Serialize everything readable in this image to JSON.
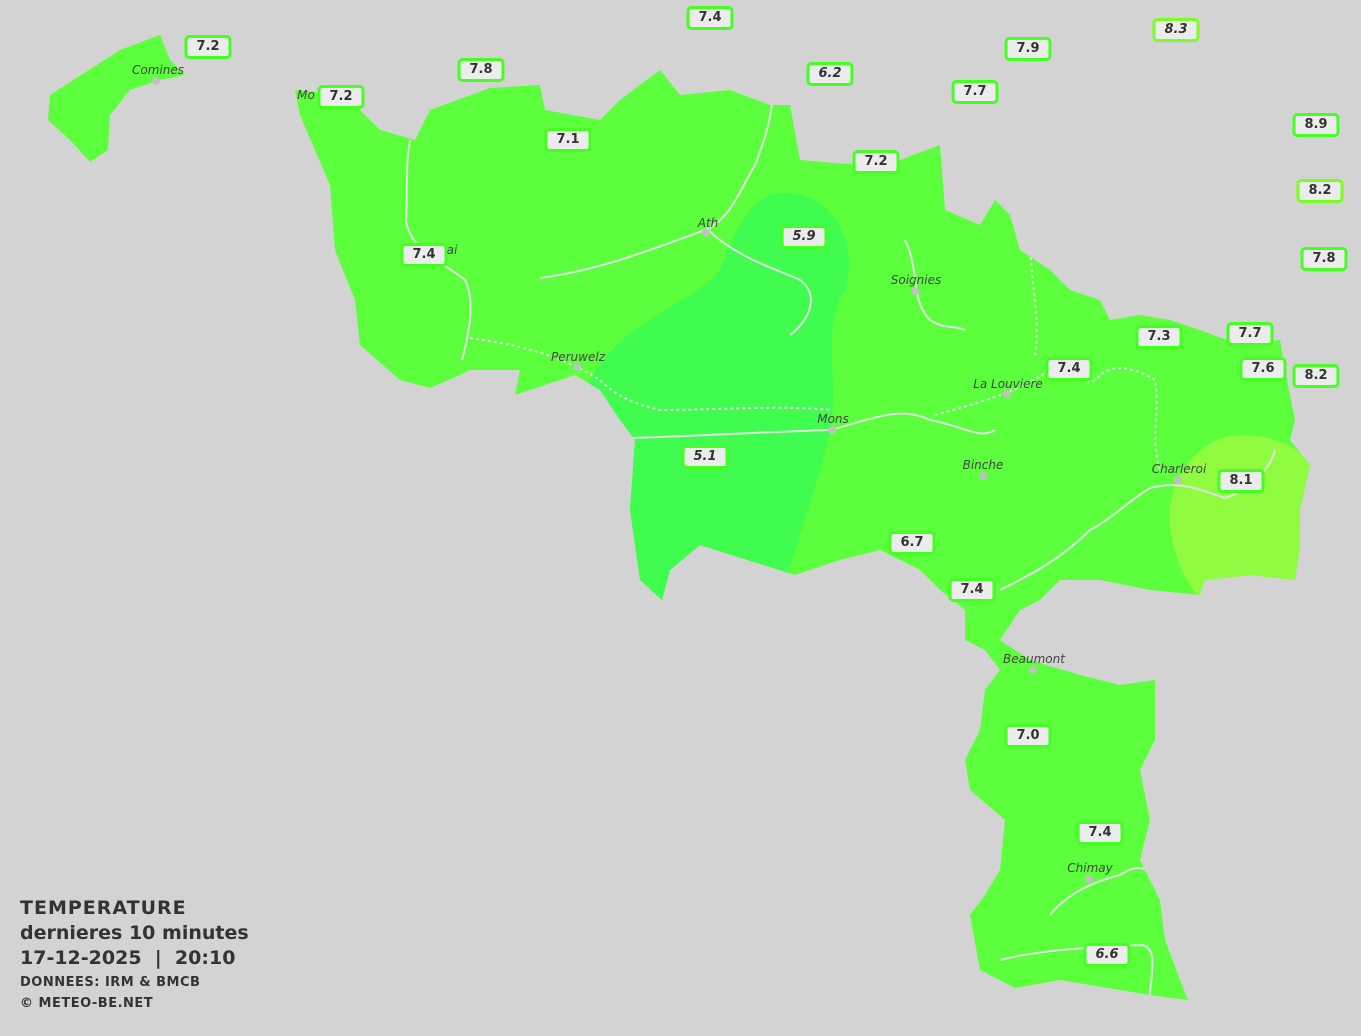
{
  "legend": {
    "title": "TEMPERATURE",
    "period": "dernieres 10 minutes",
    "datetime": "17-12-2025  |  20:10",
    "source": "DONNEES: IRM & BMCB",
    "copyright": "© METEO-BE.NET"
  },
  "colors": {
    "background": "#d3d3d3",
    "zone_7_to_8": "#5cff3c",
    "zone_5_to_6": "#3ffc4f",
    "zone_8_plus": "#8ffc3f",
    "river": "#e0e0e0",
    "label_border": "#44ff22"
  },
  "cities": [
    "Comines",
    "Mo",
    "ai",
    "Ath",
    "Soignies",
    "Peruwelz",
    "La Louviere",
    "Mons",
    "Binche",
    "Charleroi",
    "Beaumont",
    "Chimay"
  ],
  "stations": [
    "7.2",
    "7.4",
    "7.8",
    "7.2",
    "6.2",
    "7.9",
    "8.3",
    "7.7",
    "7.1",
    "8.9",
    "7.2",
    "8.2",
    "5.9",
    "7.4",
    "7.8",
    "7.3",
    "7.7",
    "7.4",
    "7.6",
    "8.2",
    "5.1",
    "8.1",
    "6.7",
    "7.4",
    "7.0",
    "7.4",
    "6.6"
  ]
}
